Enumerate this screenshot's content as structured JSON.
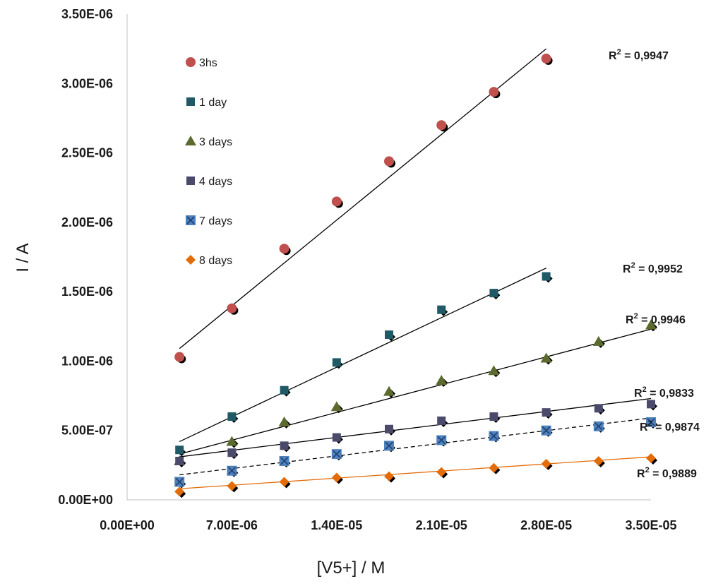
{
  "chart_data": {
    "type": "scatter",
    "title": "",
    "xlabel": "[V5+] / M",
    "ylabel": "I / A",
    "xlim": [
      0,
      3.5e-05
    ],
    "ylim": [
      0,
      3.5e-06
    ],
    "xticks": [
      0,
      7e-06,
      1.4e-05,
      2.1e-05,
      2.8e-05,
      3.5e-05
    ],
    "xtick_labels": [
      "0.00E+00",
      "7.00E-06",
      "1.40E-05",
      "2.10E-05",
      "2.80E-05",
      "3.50E-05"
    ],
    "yticks": [
      0,
      5e-07,
      1e-06,
      1.5e-06,
      2e-06,
      2.5e-06,
      3e-06,
      3.5e-06
    ],
    "ytick_labels": [
      "0.00E+00",
      "5.00E-07",
      "1.00E-06",
      "1.50E-06",
      "2.00E-06",
      "2.50E-06",
      "3.00E-06",
      "3.50E-06"
    ],
    "grid": false,
    "legend_position": "top-left",
    "series": [
      {
        "name": "3hs",
        "marker": "circle",
        "color": "#c0504d",
        "x": [
          3.5e-06,
          7e-06,
          1.05e-05,
          1.4e-05,
          1.75e-05,
          2.1e-05,
          2.45e-05,
          2.8e-05
        ],
        "y": [
          1.03e-06,
          1.38e-06,
          1.81e-06,
          2.15e-06,
          2.44e-06,
          2.7e-06,
          2.94e-06,
          3.18e-06
        ],
        "fit": {
          "x": [
            3.5e-06,
            2.8e-05
          ],
          "y": [
            1.09e-06,
            3.25e-06
          ],
          "style": "solid",
          "color": "#000000"
        },
        "r2_label": "0,9947"
      },
      {
        "name": "1 day",
        "marker": "square",
        "color": "#1f5a66",
        "x": [
          3.5e-06,
          7e-06,
          1.05e-05,
          1.4e-05,
          1.75e-05,
          2.1e-05,
          2.45e-05,
          2.8e-05
        ],
        "y": [
          3.6e-07,
          6e-07,
          7.9e-07,
          9.9e-07,
          1.19e-06,
          1.37e-06,
          1.49e-06,
          1.61e-06
        ],
        "fit": {
          "x": [
            3.5e-06,
            2.8e-05
          ],
          "y": [
            4.2e-07,
            1.67e-06
          ],
          "style": "solid",
          "color": "#000000"
        },
        "r2_label": "0,9952"
      },
      {
        "name": "3 days",
        "marker": "triangle",
        "color": "#5b6b2e",
        "x": [
          3.5e-06,
          7e-06,
          1.05e-05,
          1.4e-05,
          1.75e-05,
          2.1e-05,
          2.45e-05,
          2.8e-05,
          3.15e-05,
          3.5e-05
        ],
        "y": [
          2.8e-07,
          4.2e-07,
          5.6e-07,
          6.7e-07,
          7.8e-07,
          8.6e-07,
          9.3e-07,
          1.02e-06,
          1.14e-06,
          1.26e-06
        ],
        "fit": {
          "x": [
            3.5e-06,
            3.5e-05
          ],
          "y": [
            3.3e-07,
            1.23e-06
          ],
          "style": "solid",
          "color": "#000000"
        },
        "r2_label": " 0,9946"
      },
      {
        "name": "4  days",
        "marker": "square",
        "color": "#4b4a6b",
        "x": [
          3.5e-06,
          7e-06,
          1.05e-05,
          1.4e-05,
          1.75e-05,
          2.1e-05,
          2.45e-05,
          2.8e-05,
          3.15e-05,
          3.5e-05
        ],
        "y": [
          2.8e-07,
          3.4e-07,
          3.9e-07,
          4.5e-07,
          5.1e-07,
          5.7e-07,
          6e-07,
          6.3e-07,
          6.6e-07,
          6.9e-07
        ],
        "fit": {
          "x": [
            3.5e-06,
            3.5e-05
          ],
          "y": [
            3.1e-07,
            7.3e-07
          ],
          "style": "solid",
          "color": "#000000"
        },
        "r2_label": "0,9833"
      },
      {
        "name": "7 days",
        "marker": "xsquare",
        "color": "#4f81bd",
        "x": [
          3.5e-06,
          7e-06,
          1.05e-05,
          1.4e-05,
          1.75e-05,
          2.1e-05,
          2.45e-05,
          2.8e-05,
          3.15e-05,
          3.5e-05
        ],
        "y": [
          1.3e-07,
          2.1e-07,
          2.8e-07,
          3.3e-07,
          3.9e-07,
          4.3e-07,
          4.6e-07,
          5e-07,
          5.3e-07,
          5.6e-07
        ],
        "fit": {
          "x": [
            3.5e-06,
            3.5e-05
          ],
          "y": [
            1.8e-07,
            5.9e-07
          ],
          "style": "dashed",
          "color": "#000000"
        },
        "r2_label": " 0,9874"
      },
      {
        "name": "8 days",
        "marker": "diamond",
        "color": "#e36c09",
        "x": [
          3.5e-06,
          7e-06,
          1.05e-05,
          1.4e-05,
          1.75e-05,
          2.1e-05,
          2.45e-05,
          2.8e-05,
          3.15e-05,
          3.5e-05
        ],
        "y": [
          6e-08,
          1e-07,
          1.3e-07,
          1.6e-07,
          1.7e-07,
          2e-07,
          2.3e-07,
          2.6e-07,
          2.8e-07,
          3e-07
        ],
        "fit": {
          "x": [
            3.5e-06,
            3.5e-05
          ],
          "y": [
            8e-08,
            3.1e-07
          ],
          "style": "solid",
          "color": "#e36c09"
        },
        "r2_label": "0,9889"
      }
    ]
  }
}
